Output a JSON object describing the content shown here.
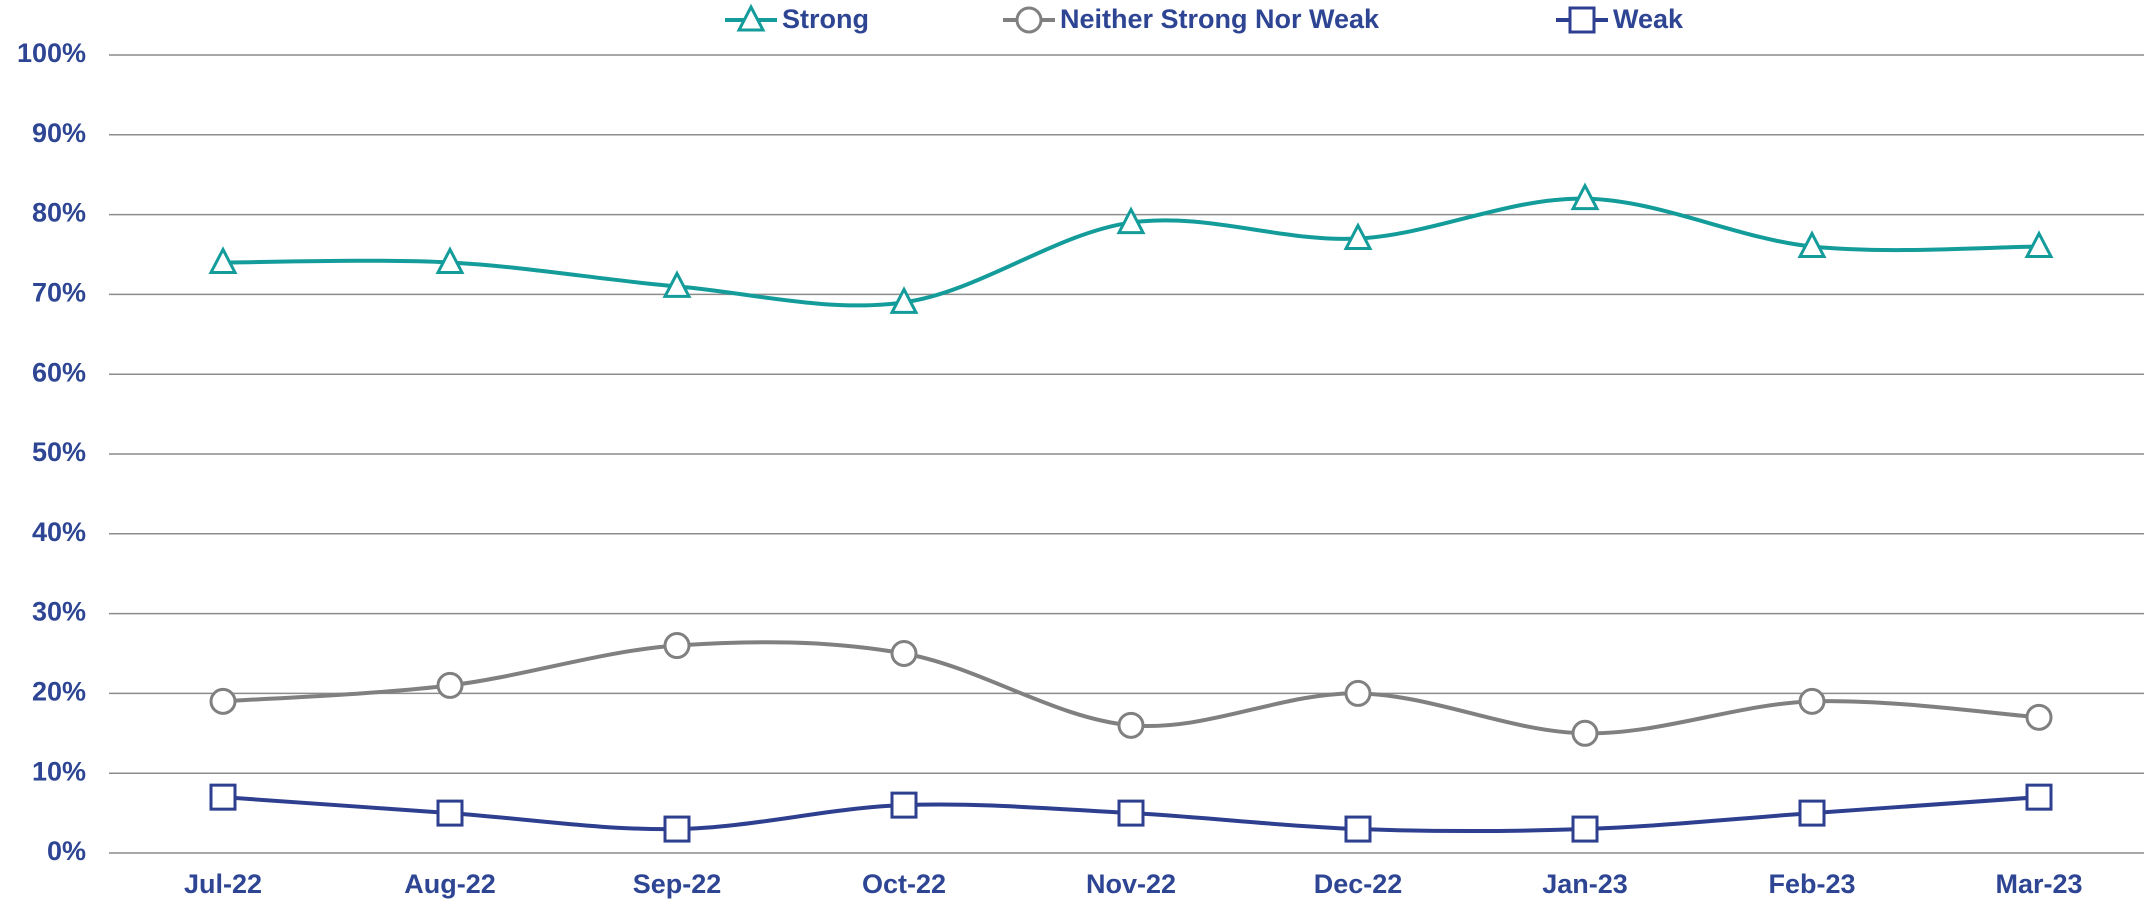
{
  "chart_data": {
    "type": "line",
    "categories": [
      "Jul-22",
      "Aug-22",
      "Sep-22",
      "Oct-22",
      "Nov-22",
      "Dec-22",
      "Jan-23",
      "Feb-23",
      "Mar-23"
    ],
    "series": [
      {
        "name": "Strong",
        "color": "#139c9a",
        "marker": "triangle",
        "values": [
          74,
          74,
          71,
          69,
          79,
          77,
          82,
          76,
          76
        ]
      },
      {
        "name": "Neither Strong Nor Weak",
        "color": "#808080",
        "marker": "circle",
        "values": [
          19,
          21,
          26,
          25,
          16,
          20,
          15,
          19,
          17
        ]
      },
      {
        "name": "Weak",
        "color": "#2e3f8f",
        "marker": "square",
        "values": [
          7,
          5,
          3,
          6,
          5,
          3,
          3,
          5,
          7
        ]
      }
    ],
    "ylim": [
      0,
      100
    ],
    "yticks": [
      {
        "value": 0,
        "label": "0%"
      },
      {
        "value": 10,
        "label": "10%"
      },
      {
        "value": 20,
        "label": "20%"
      },
      {
        "value": 30,
        "label": "30%"
      },
      {
        "value": 40,
        "label": "40%"
      },
      {
        "value": 50,
        "label": "50%"
      },
      {
        "value": 60,
        "label": "60%"
      },
      {
        "value": 70,
        "label": "70%"
      },
      {
        "value": 80,
        "label": "80%"
      },
      {
        "value": 90,
        "label": "90%"
      },
      {
        "value": 100,
        "label": "100%"
      }
    ],
    "grid": true,
    "smooth": true,
    "legend": "top"
  }
}
